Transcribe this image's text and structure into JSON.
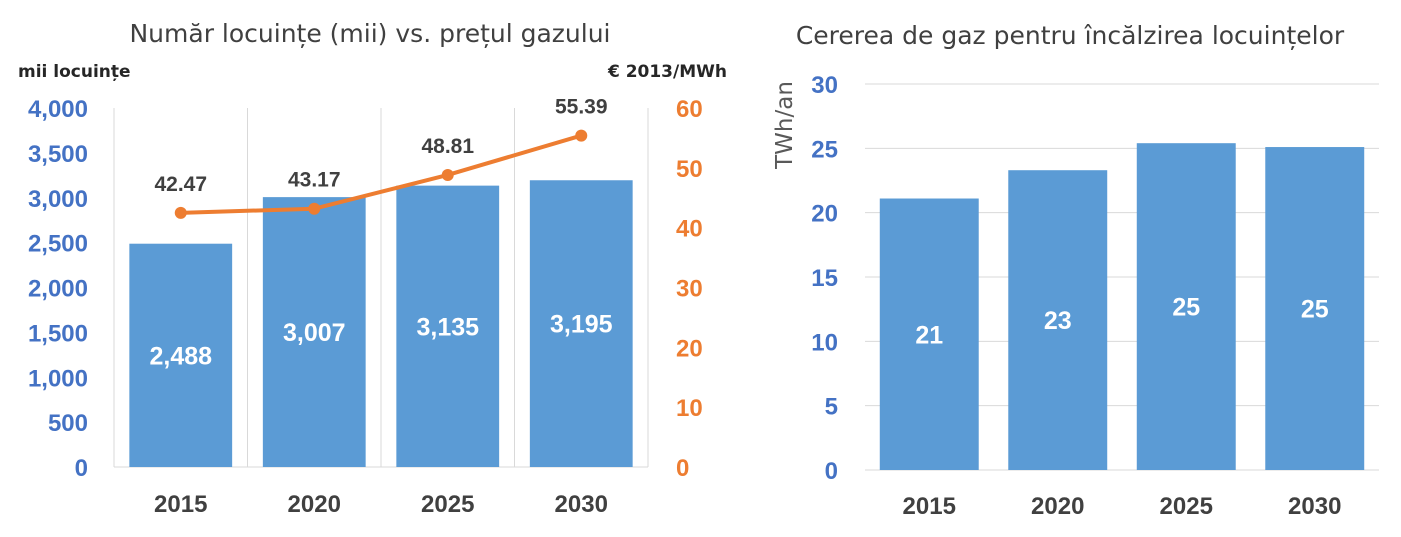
{
  "chart_data": [
    {
      "type": "bar",
      "title": "Număr locuințe (mii) vs. prețul gazului",
      "ylabel": "mii locuințe",
      "y2label": "€ 2013/MWh",
      "categories": [
        "2015",
        "2020",
        "2025",
        "2030"
      ],
      "series": [
        {
          "name": "",
          "type": "bar",
          "axis": "left",
          "values": [
            2488,
            3007,
            3135,
            3195
          ],
          "labels": [
            "2,488",
            "3,007",
            "3,135",
            "3,195"
          ]
        },
        {
          "name": "",
          "type": "line",
          "axis": "right",
          "values": [
            42.47,
            43.17,
            48.81,
            55.39
          ],
          "labels": [
            "42.47",
            "43.17",
            "48.81",
            "55.39"
          ]
        }
      ],
      "ylim": [
        0,
        4000
      ],
      "y2lim": [
        0,
        60
      ],
      "yticks": [
        "0",
        "500",
        "1,000",
        "1,500",
        "2,000",
        "2,500",
        "3,000",
        "3,500",
        "4,000"
      ],
      "y2ticks": [
        "0",
        "10",
        "20",
        "30",
        "40",
        "50",
        "60"
      ],
      "grid": "vertical category lines",
      "colors": {
        "bar": "#5B9BD5",
        "line": "#ED7D31",
        "left_axis": "#4472C4",
        "right_axis": "#ED7D31"
      }
    },
    {
      "type": "bar",
      "title": "Cererea de gaz pentru încălzirea locuințelor",
      "ylabel": "TWh/an",
      "categories": [
        "2015",
        "2020",
        "2025",
        "2030"
      ],
      "values": [
        21.1,
        23.3,
        25.4,
        25.1
      ],
      "labels": [
        "21",
        "23",
        "25",
        "25"
      ],
      "ylim": [
        0,
        30
      ],
      "yticks": [
        "0",
        "5",
        "10",
        "15",
        "20",
        "25",
        "30"
      ],
      "grid": "horizontal",
      "colors": {
        "bar": "#5B9BD5",
        "axis": "#4472C4"
      }
    }
  ]
}
